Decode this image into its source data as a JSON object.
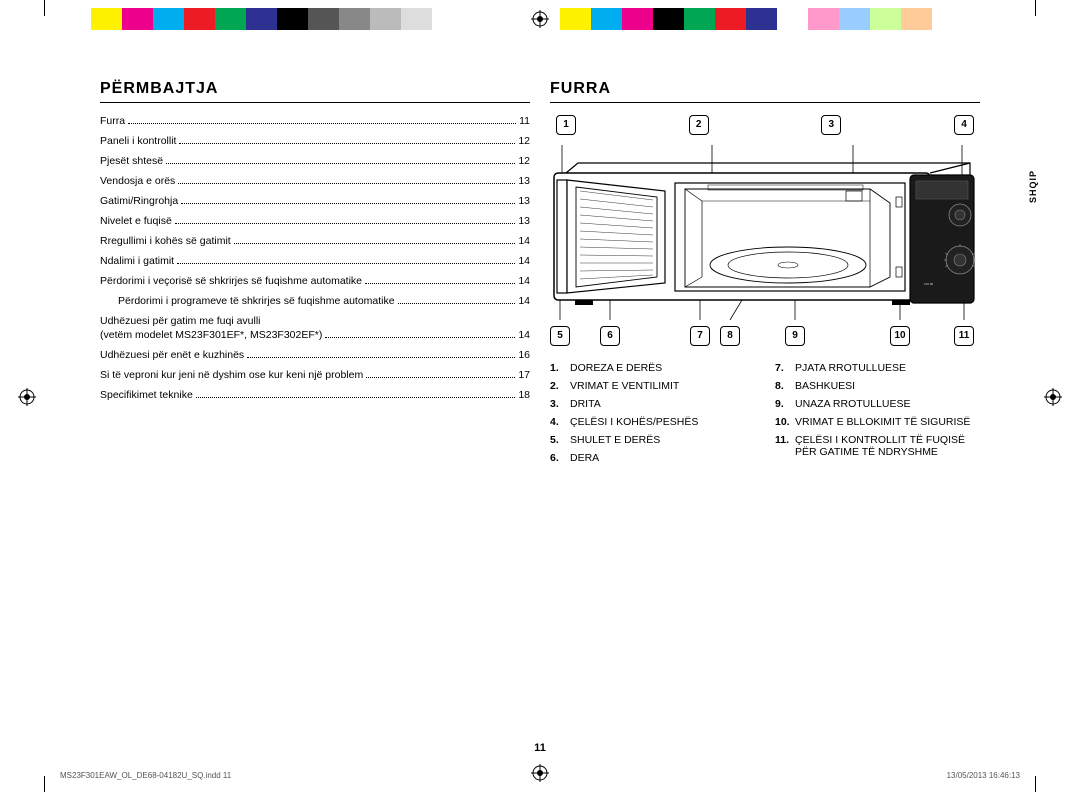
{
  "colorbar_left": [
    "#fff",
    "#fef200",
    "#ec008c",
    "#00aeef",
    "#ed1c24",
    "#00a651",
    "#2e3192",
    "#000",
    "#555",
    "#888",
    "#bbb",
    "#ddd"
  ],
  "colorbar_right": [
    "#fef200",
    "#00aeef",
    "#ec008c",
    "#000",
    "#00a651",
    "#ed1c24",
    "#2e3192",
    "#fff",
    "#f9c",
    "#9cf",
    "#cf9",
    "#fc9"
  ],
  "left": {
    "title": "PËRMBAJTJA",
    "toc": [
      {
        "label": "Furra",
        "page": "11"
      },
      {
        "label": "Paneli i kontrollit",
        "page": "12"
      },
      {
        "label": "Pjesët shtesë",
        "page": "12"
      },
      {
        "label": "Vendosja e orës",
        "page": "13"
      },
      {
        "label": "Gatimi/Ringrohja",
        "page": "13"
      },
      {
        "label": "Nivelet e fuqisë",
        "page": "13"
      },
      {
        "label": "Rregullimi i kohës së gatimit",
        "page": "14"
      },
      {
        "label": "Ndalimi i gatimit",
        "page": "14"
      },
      {
        "label": "Përdorimi i veçorisë së shkrirjes së fuqishme automatike",
        "page": "14"
      },
      {
        "label": "Përdorimi i programeve të shkrirjes së fuqishme automatike",
        "page": "14",
        "indent": true
      },
      {
        "label": "Udhëzuesi për gatim me fuqi avulli",
        "sub": "(vetëm modelet MS23F301EF*, MS23F302EF*)",
        "page": "14",
        "multiline": true
      },
      {
        "label": "Udhëzuesi për enët e kuzhinës",
        "page": "16"
      },
      {
        "label": "Si të veproni kur jeni në dyshim ose kur keni një problem",
        "page": "17"
      },
      {
        "label": "Specifikimet teknike",
        "page": "18"
      }
    ]
  },
  "right": {
    "title": "FURRA",
    "callouts_top": [
      "1",
      "2",
      "3",
      "4"
    ],
    "callouts_bottom": [
      "5",
      "6",
      "7",
      "8",
      "9",
      "10",
      "11"
    ],
    "callouts_bottom_positions": [
      0,
      50,
      140,
      170,
      235,
      340,
      404
    ],
    "diagram": {
      "outer_stroke": "#000",
      "fill": "#fff",
      "panel_fill": "#1a1a1a",
      "lead_line_color": "#000"
    },
    "parts_left": [
      {
        "n": "1.",
        "t": "DOREZA E DERËS"
      },
      {
        "n": "2.",
        "t": "VRIMAT E VENTILIMIT"
      },
      {
        "n": "3.",
        "t": "DRITA"
      },
      {
        "n": "4.",
        "t": "ÇELËSI I KOHËS/PESHËS"
      },
      {
        "n": "5.",
        "t": "SHULET E DERËS"
      },
      {
        "n": "6.",
        "t": "DERA"
      }
    ],
    "parts_right": [
      {
        "n": "7.",
        "t": "PJATA RROTULLUESE"
      },
      {
        "n": "8.",
        "t": "BASHKUESI"
      },
      {
        "n": "9.",
        "t": "UNAZA RROTULLUESE"
      },
      {
        "n": "10.",
        "t": "VRIMAT E BLLOKIMIT TË SIGURISË"
      },
      {
        "n": "11.",
        "t": "ÇELËSI I KONTROLLIT TË FUQISË PËR GATIME TË NDRYSHME"
      }
    ]
  },
  "side_tab": "SHQIP",
  "page_number": "11",
  "footer_left": "MS23F301EAW_OL_DE68-04182U_SQ.indd   11",
  "footer_right": "13/05/2013   16:46:13"
}
